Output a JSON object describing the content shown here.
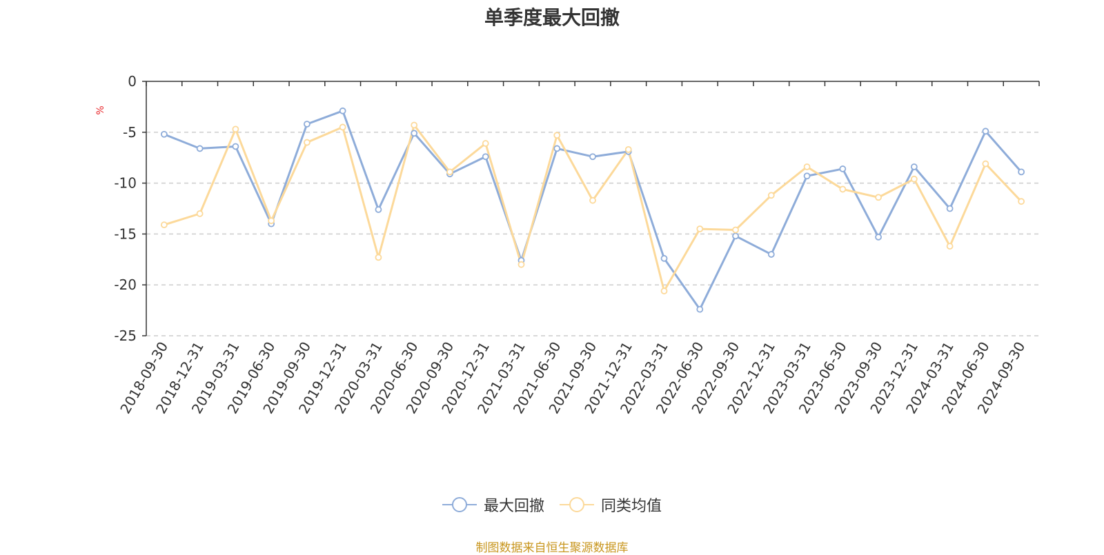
{
  "chart_data": {
    "type": "line",
    "title": "单季度最大回撤",
    "ylabel": "%",
    "ylim": [
      -25,
      0
    ],
    "yticks": [
      0,
      -5,
      -10,
      -15,
      -20,
      -25
    ],
    "grid": true,
    "legend_position": "bottom",
    "categories": [
      "2018-09-30",
      "2018-12-31",
      "2019-03-31",
      "2019-06-30",
      "2019-09-30",
      "2019-12-31",
      "2020-03-31",
      "2020-06-30",
      "2020-09-30",
      "2020-12-31",
      "2021-03-31",
      "2021-06-30",
      "2021-09-30",
      "2021-12-31",
      "2022-03-31",
      "2022-06-30",
      "2022-09-30",
      "2022-12-31",
      "2023-03-31",
      "2023-06-30",
      "2023-09-30",
      "2023-12-31",
      "2024-03-31",
      "2024-06-30",
      "2024-09-30"
    ],
    "series": [
      {
        "name": "最大回撤",
        "color": "#8eacd9",
        "values": [
          -5.2,
          -6.6,
          -6.4,
          -14.0,
          -4.2,
          -2.9,
          -12.6,
          -5.1,
          -9.1,
          -7.4,
          -17.6,
          -6.6,
          -7.4,
          -6.9,
          -17.4,
          -22.4,
          -15.2,
          -17.0,
          -9.3,
          -8.6,
          -15.3,
          -8.4,
          -12.5,
          -4.9,
          -8.9
        ]
      },
      {
        "name": "同类均值",
        "color": "#fcd99a",
        "values": [
          -14.1,
          -13.0,
          -4.7,
          -13.7,
          -6.0,
          -4.5,
          -17.3,
          -4.3,
          -8.9,
          -6.1,
          -18.0,
          -5.3,
          -11.7,
          -6.7,
          -20.6,
          -14.5,
          -14.6,
          -11.2,
          -8.4,
          -10.6,
          -11.4,
          -9.6,
          -16.2,
          -8.1,
          -11.8
        ]
      }
    ]
  },
  "footer": {
    "source": "制图数据来自恒生聚源数据库"
  }
}
